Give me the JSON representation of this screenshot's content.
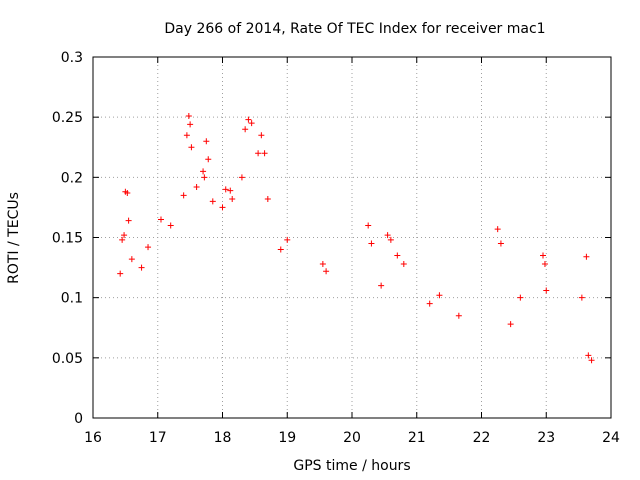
{
  "chart_data": {
    "type": "scatter",
    "title": "Day 266 of 2014, Rate Of TEC Index for receiver mac1",
    "xlabel": "GPS time / hours",
    "ylabel": "ROTI / TECUs",
    "xlim": [
      16,
      24
    ],
    "ylim": [
      0,
      0.3
    ],
    "xticks": [
      16,
      17,
      18,
      19,
      20,
      21,
      22,
      23,
      24
    ],
    "xtick_labels": [
      "16",
      "17",
      "18",
      "19",
      "20",
      "21",
      "22",
      "23",
      "24"
    ],
    "yticks": [
      0,
      0.05,
      0.1,
      0.15,
      0.2,
      0.25,
      0.3
    ],
    "ytick_labels": [
      "0",
      "0.05",
      "0.1",
      "0.15",
      "0.2",
      "0.25",
      "0.3"
    ],
    "grid": true,
    "marker": "plus",
    "series": [
      {
        "name": "ROTI",
        "color": "#ff0000",
        "points": [
          [
            16.42,
            0.12
          ],
          [
            16.45,
            0.148
          ],
          [
            16.48,
            0.152
          ],
          [
            16.5,
            0.188
          ],
          [
            16.53,
            0.187
          ],
          [
            16.55,
            0.164
          ],
          [
            16.6,
            0.132
          ],
          [
            16.75,
            0.125
          ],
          [
            16.85,
            0.142
          ],
          [
            17.05,
            0.165
          ],
          [
            17.2,
            0.16
          ],
          [
            17.4,
            0.185
          ],
          [
            17.45,
            0.235
          ],
          [
            17.48,
            0.251
          ],
          [
            17.5,
            0.244
          ],
          [
            17.52,
            0.225
          ],
          [
            17.6,
            0.192
          ],
          [
            17.7,
            0.205
          ],
          [
            17.72,
            0.2
          ],
          [
            17.75,
            0.23
          ],
          [
            17.78,
            0.215
          ],
          [
            17.85,
            0.18
          ],
          [
            18.0,
            0.175
          ],
          [
            18.05,
            0.19
          ],
          [
            18.12,
            0.189
          ],
          [
            18.15,
            0.182
          ],
          [
            18.3,
            0.2
          ],
          [
            18.35,
            0.24
          ],
          [
            18.4,
            0.248
          ],
          [
            18.45,
            0.245
          ],
          [
            18.55,
            0.22
          ],
          [
            18.6,
            0.235
          ],
          [
            18.65,
            0.22
          ],
          [
            18.7,
            0.182
          ],
          [
            18.9,
            0.14
          ],
          [
            19.0,
            0.148
          ],
          [
            19.55,
            0.128
          ],
          [
            19.6,
            0.122
          ],
          [
            20.25,
            0.16
          ],
          [
            20.3,
            0.145
          ],
          [
            20.45,
            0.11
          ],
          [
            20.55,
            0.152
          ],
          [
            20.6,
            0.148
          ],
          [
            20.7,
            0.135
          ],
          [
            20.8,
            0.128
          ],
          [
            21.2,
            0.095
          ],
          [
            21.35,
            0.102
          ],
          [
            21.65,
            0.085
          ],
          [
            22.25,
            0.157
          ],
          [
            22.3,
            0.145
          ],
          [
            22.45,
            0.078
          ],
          [
            22.6,
            0.1
          ],
          [
            22.95,
            0.135
          ],
          [
            22.98,
            0.128
          ],
          [
            23.0,
            0.106
          ],
          [
            23.55,
            0.1
          ],
          [
            23.62,
            0.134
          ],
          [
            23.65,
            0.052
          ],
          [
            23.7,
            0.048
          ]
        ]
      }
    ]
  }
}
